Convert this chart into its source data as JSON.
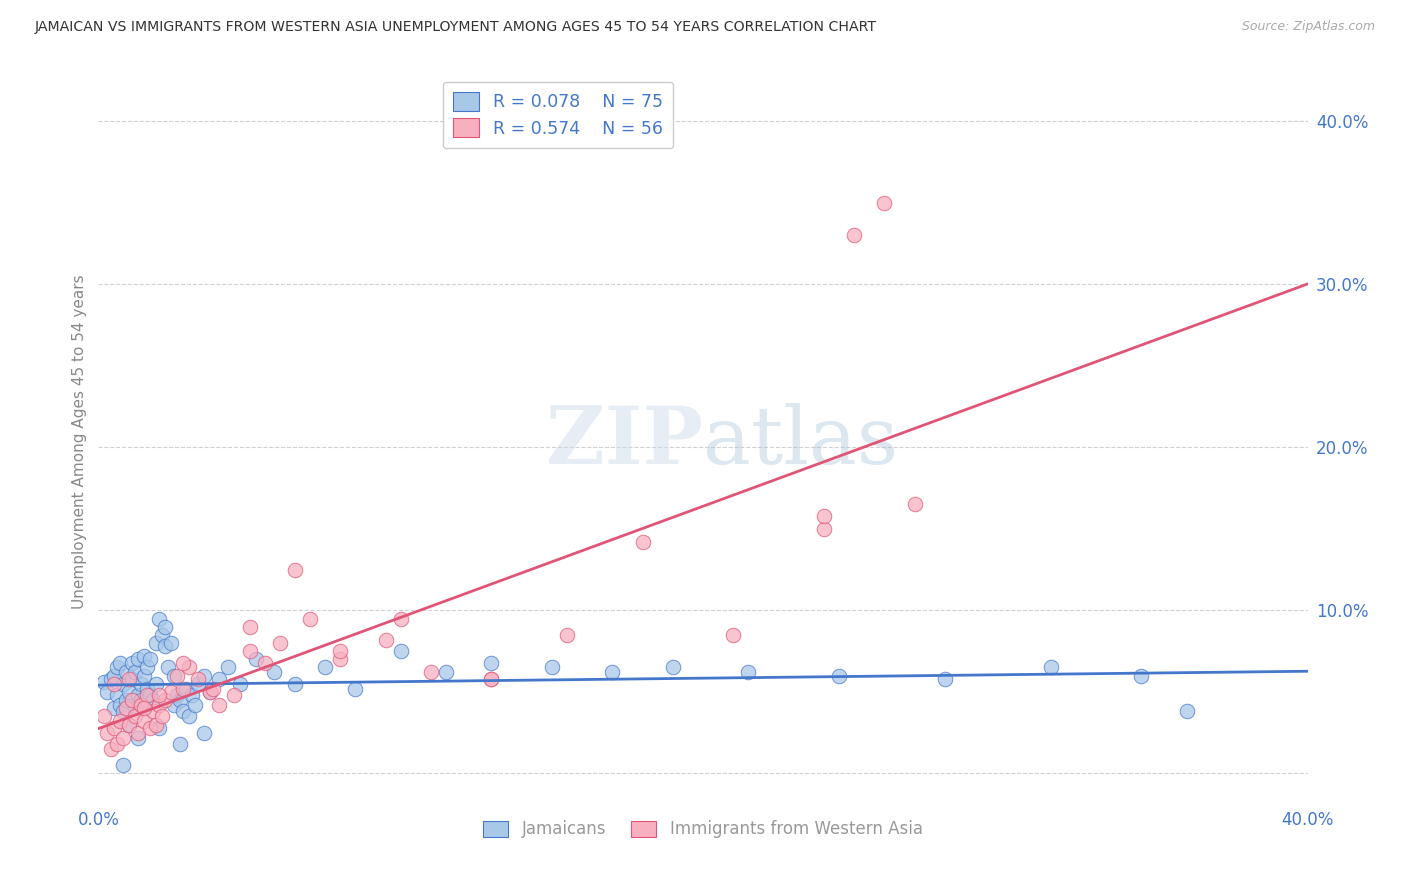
{
  "title": "JAMAICAN VS IMMIGRANTS FROM WESTERN ASIA UNEMPLOYMENT AMONG AGES 45 TO 54 YEARS CORRELATION CHART",
  "source": "Source: ZipAtlas.com",
  "ylabel": "Unemployment Among Ages 45 to 54 years",
  "xlim": [
    0.0,
    0.4
  ],
  "ylim": [
    -0.018,
    0.425
  ],
  "legend_labels": [
    "Jamaicans",
    "Immigrants from Western Asia"
  ],
  "R_jamaican": 0.078,
  "N_jamaican": 75,
  "R_western_asia": 0.574,
  "N_western_asia": 56,
  "blue_color": "#a8c8e8",
  "pink_color": "#f8b0c0",
  "blue_line_color": "#4477cc",
  "pink_line_color": "#e05575",
  "title_color": "#333333",
  "axis_label_color": "#4477cc",
  "grid_color": "#cccccc",
  "background_color": "#ffffff",
  "jamaican_x": [
    0.002,
    0.003,
    0.004,
    0.005,
    0.005,
    0.006,
    0.006,
    0.007,
    0.007,
    0.008,
    0.008,
    0.009,
    0.009,
    0.01,
    0.01,
    0.011,
    0.011,
    0.012,
    0.012,
    0.013,
    0.013,
    0.014,
    0.014,
    0.015,
    0.015,
    0.016,
    0.016,
    0.017,
    0.017,
    0.018,
    0.019,
    0.019,
    0.02,
    0.021,
    0.022,
    0.022,
    0.023,
    0.024,
    0.025,
    0.025,
    0.026,
    0.027,
    0.028,
    0.029,
    0.03,
    0.031,
    0.032,
    0.033,
    0.035,
    0.037,
    0.04,
    0.043,
    0.047,
    0.052,
    0.058,
    0.065,
    0.075,
    0.085,
    0.1,
    0.115,
    0.13,
    0.15,
    0.17,
    0.19,
    0.215,
    0.245,
    0.28,
    0.315,
    0.345,
    0.36,
    0.008,
    0.013,
    0.02,
    0.027,
    0.035
  ],
  "jamaican_y": [
    0.056,
    0.05,
    0.058,
    0.06,
    0.04,
    0.048,
    0.065,
    0.042,
    0.068,
    0.038,
    0.055,
    0.062,
    0.045,
    0.05,
    0.03,
    0.058,
    0.068,
    0.04,
    0.062,
    0.048,
    0.07,
    0.045,
    0.055,
    0.06,
    0.072,
    0.052,
    0.065,
    0.048,
    0.07,
    0.045,
    0.08,
    0.055,
    0.095,
    0.085,
    0.09,
    0.078,
    0.065,
    0.08,
    0.042,
    0.06,
    0.048,
    0.045,
    0.038,
    0.052,
    0.035,
    0.048,
    0.042,
    0.055,
    0.06,
    0.05,
    0.058,
    0.065,
    0.055,
    0.07,
    0.062,
    0.055,
    0.065,
    0.052,
    0.075,
    0.062,
    0.068,
    0.065,
    0.062,
    0.065,
    0.062,
    0.06,
    0.058,
    0.065,
    0.06,
    0.038,
    0.005,
    0.022,
    0.028,
    0.018,
    0.025
  ],
  "western_asia_x": [
    0.002,
    0.003,
    0.004,
    0.005,
    0.006,
    0.007,
    0.008,
    0.009,
    0.01,
    0.011,
    0.012,
    0.013,
    0.014,
    0.015,
    0.016,
    0.017,
    0.018,
    0.019,
    0.02,
    0.021,
    0.022,
    0.024,
    0.026,
    0.028,
    0.03,
    0.033,
    0.037,
    0.04,
    0.045,
    0.05,
    0.055,
    0.06,
    0.07,
    0.08,
    0.095,
    0.11,
    0.13,
    0.155,
    0.18,
    0.21,
    0.24,
    0.27,
    0.005,
    0.01,
    0.015,
    0.02,
    0.028,
    0.038,
    0.05,
    0.065,
    0.08,
    0.1,
    0.13,
    0.25,
    0.26,
    0.24
  ],
  "western_asia_y": [
    0.035,
    0.025,
    0.015,
    0.028,
    0.018,
    0.032,
    0.022,
    0.04,
    0.03,
    0.045,
    0.035,
    0.025,
    0.042,
    0.032,
    0.048,
    0.028,
    0.038,
    0.03,
    0.042,
    0.035,
    0.045,
    0.05,
    0.06,
    0.052,
    0.065,
    0.058,
    0.05,
    0.042,
    0.048,
    0.075,
    0.068,
    0.08,
    0.095,
    0.07,
    0.082,
    0.062,
    0.058,
    0.085,
    0.142,
    0.085,
    0.15,
    0.165,
    0.055,
    0.058,
    0.04,
    0.048,
    0.068,
    0.052,
    0.09,
    0.125,
    0.075,
    0.095,
    0.058,
    0.33,
    0.35,
    0.158
  ]
}
